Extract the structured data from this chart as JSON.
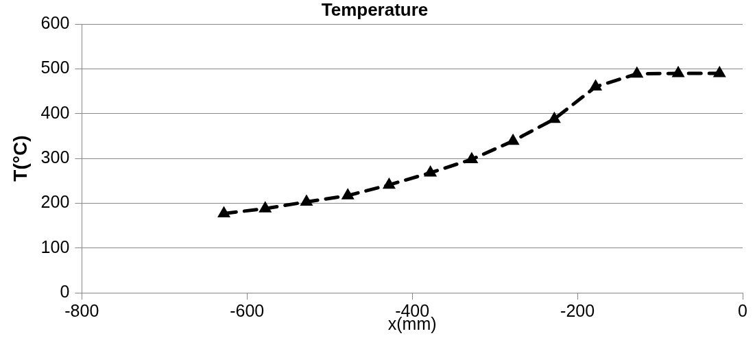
{
  "chart_data": {
    "type": "line",
    "title": "Temperature",
    "xlabel": "x(mm)",
    "ylabel": "T(°C)",
    "x": [
      -628,
      -578,
      -528,
      -478,
      -428,
      -378,
      -328,
      -278,
      -228,
      -178,
      -128,
      -78,
      -28
    ],
    "series": [
      {
        "color": "#000000",
        "values": [
          177,
          188,
          203,
          217,
          241,
          268,
          298,
          339,
          388,
          460,
          489,
          490,
          490
        ]
      }
    ],
    "xlim": [
      -800,
      0
    ],
    "xticks": [
      -800,
      -600,
      -400,
      -200,
      0
    ],
    "ylim": [
      0,
      600
    ],
    "yticks": [
      0,
      100,
      200,
      300,
      400,
      500,
      600
    ],
    "grid": "y",
    "legend": false,
    "marker": "triangle",
    "line_style": "dashed"
  }
}
